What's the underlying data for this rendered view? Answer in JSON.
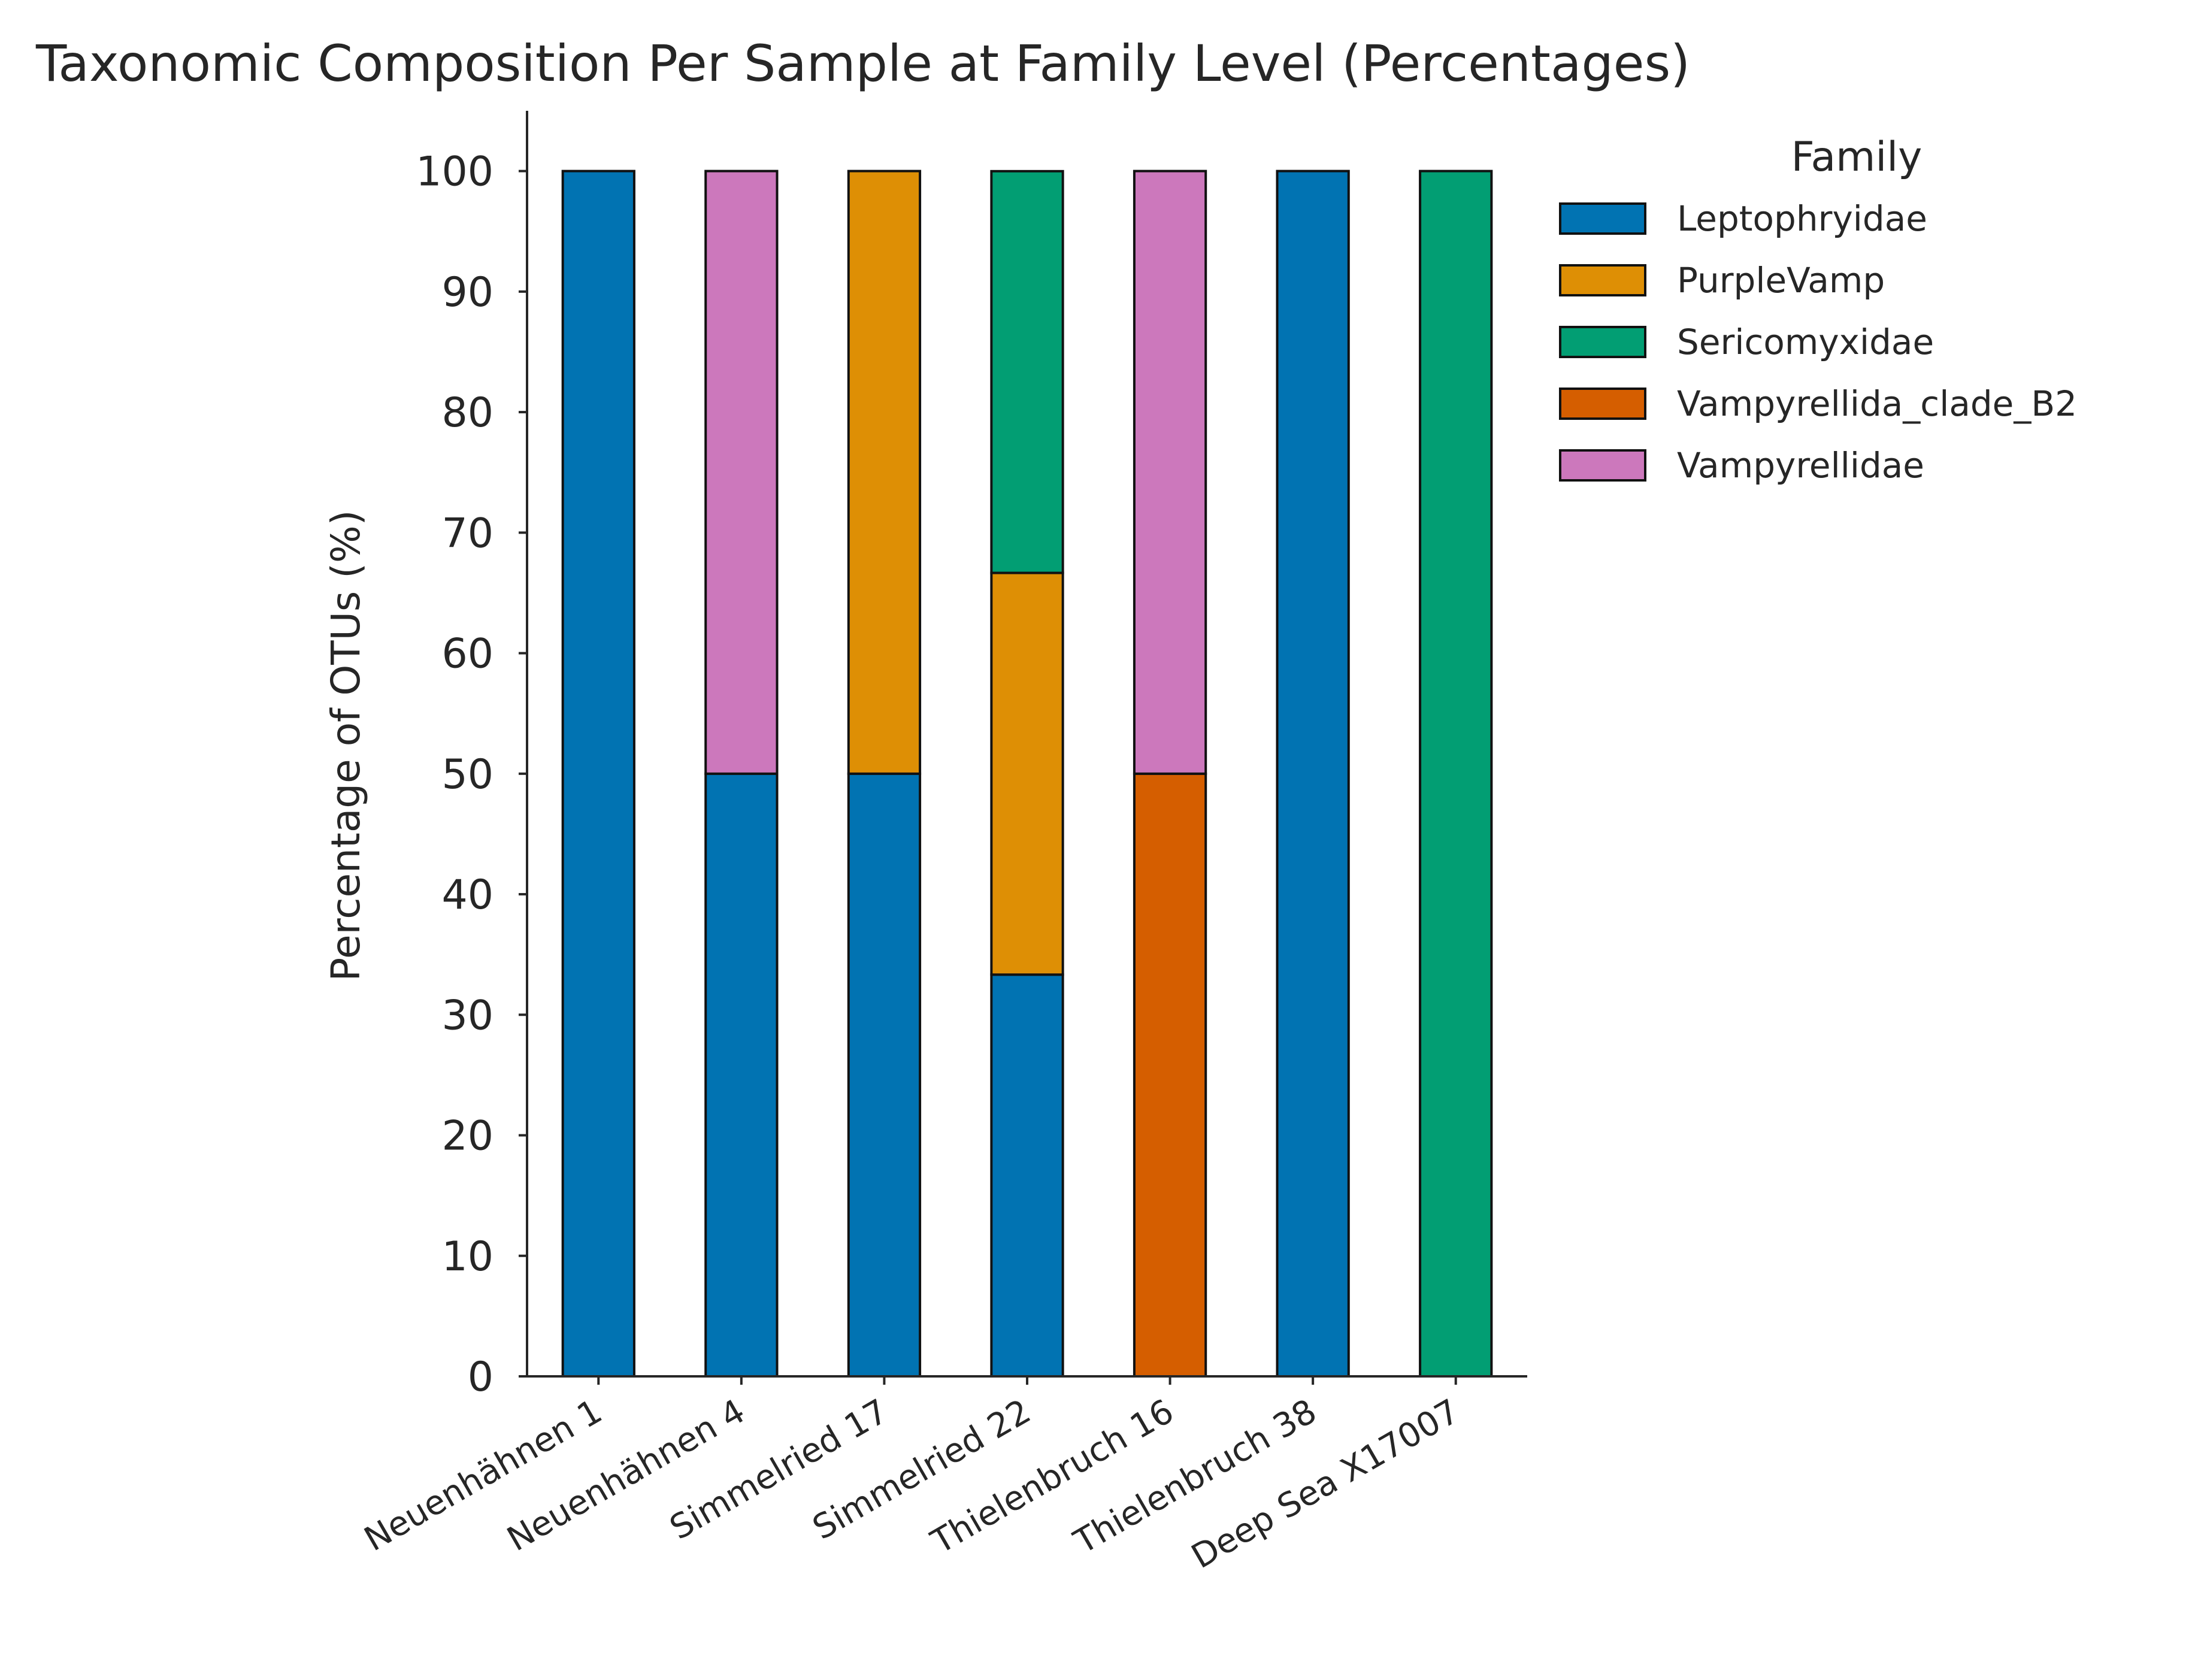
{
  "chart_data": {
    "type": "bar",
    "stacked": true,
    "title": "Taxonomic Composition Per Sample at Family Level (Percentages)",
    "xlabel": "",
    "ylabel": "Percentage of OTUs (%)",
    "ylim": [
      0,
      105
    ],
    "yticks": [
      0,
      10,
      20,
      30,
      40,
      50,
      60,
      70,
      80,
      90,
      100
    ],
    "grid": false,
    "legend": {
      "title": "Family",
      "placement": "outside-right-top"
    },
    "categories": [
      "Neuenhähnen 1",
      "Neuenhähnen 4",
      "Simmelried 17",
      "Simmelried 22",
      "Thielenbruch 16",
      "Thielenbruch 38",
      "Deep Sea X17007"
    ],
    "series": [
      {
        "name": "Leptophryidae",
        "color": "#0173b2",
        "values": [
          100,
          50,
          50,
          33.33,
          0,
          100,
          0
        ]
      },
      {
        "name": "PurpleVamp",
        "color": "#de8f05",
        "values": [
          0,
          0,
          50,
          33.33,
          0,
          0,
          0
        ]
      },
      {
        "name": "Sericomyxidae",
        "color": "#029e73",
        "values": [
          0,
          0,
          0,
          33.33,
          0,
          0,
          100
        ]
      },
      {
        "name": "Vampyrellida_clade_B2",
        "color": "#d55e00",
        "values": [
          0,
          0,
          0,
          0,
          50,
          0,
          0
        ]
      },
      {
        "name": "Vampyrellidae",
        "color": "#cc78bc",
        "values": [
          0,
          50,
          0,
          0,
          50,
          0,
          0
        ]
      }
    ],
    "stack_order": [
      "Leptophryidae",
      "Vampyrellida_clade_B2",
      "PurpleVamp",
      "Sericomyxidae",
      "Vampyrellidae"
    ]
  }
}
